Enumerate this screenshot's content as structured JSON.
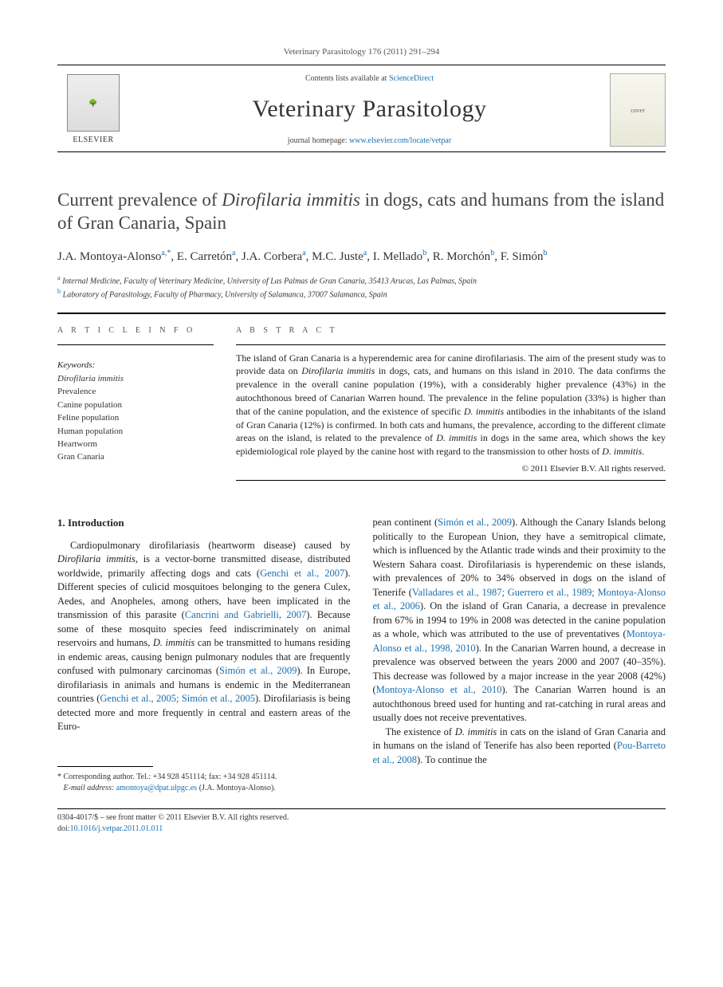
{
  "header": {
    "citation": "Veterinary Parasitology 176 (2011) 291–294",
    "contents_prefix": "Contents lists available at ",
    "contents_link": "ScienceDirect",
    "journal_title": "Veterinary Parasitology",
    "homepage_prefix": "journal homepage: ",
    "homepage_link": "www.elsevier.com/locate/vetpar",
    "publisher": "ELSEVIER"
  },
  "article": {
    "title_html": "Current prevalence of <span class=\"ital\">Dirofilaria immitis</span> in dogs, cats and humans from the island of Gran Canaria, Spain",
    "authors_html": "J.A. Montoya-Alonso<sup>a,*</sup>, E. Carretón<sup>a</sup>, J.A. Corbera<sup>a</sup>, M.C. Juste<sup>a</sup>, I. Mellado<sup>b</sup>, R. Morchón<sup>b</sup>, F. Simón<sup>b</sup>",
    "affiliations": [
      {
        "sup": "a",
        "text": "Internal Medicine, Faculty of Veterinary Medicine, University of Las Palmas de Gran Canaria, 35413 Arucas, Las Palmas, Spain"
      },
      {
        "sup": "b",
        "text": "Laboratory of Parasitology, Faculty of Pharmacy, University of Salamanca, 37007 Salamanca, Spain"
      }
    ]
  },
  "info": {
    "label": "A R T I C L E   I N F O",
    "keywords_head": "Keywords:",
    "keywords": [
      "Dirofilaria immitis",
      "Prevalence",
      "Canine population",
      "Feline population",
      "Human population",
      "Heartworm",
      "Gran Canaria"
    ]
  },
  "abstract": {
    "label": "A B S T R A C T",
    "text_html": "The island of Gran Canaria is a hyperendemic area for canine dirofilariasis. The aim of the present study was to provide data on <span class=\"ital\">Dirofilaria immitis</span> in dogs, cats, and humans on this island in 2010. The data confirms the prevalence in the overall canine population (19%), with a considerably higher prevalence (43%) in the autochthonous breed of Canarian Warren hound. The prevalence in the feline population (33%) is higher than that of the canine population, and the existence of specific <span class=\"ital\">D. immitis</span> antibodies in the inhabitants of the island of Gran Canaria (12%) is confirmed. In both cats and humans, the prevalence, according to the different climate areas on the island, is related to the prevalence of <span class=\"ital\">D. immitis</span> in dogs in the same area, which shows the key epidemiological role played by the canine host with regard to the transmission to other hosts of <span class=\"ital\">D. immitis</span>.",
    "copyright": "© 2011 Elsevier B.V. All rights reserved."
  },
  "body": {
    "section_head": "1.  Introduction",
    "left_html": "Cardiopulmonary dirofilariasis (heartworm disease) caused by <span class=\"ital\">Dirofilaria immitis</span>, is a vector-borne transmitted disease, distributed worldwide, primarily affecting dogs and cats (<a href=\"#\">Genchi et al., 2007</a>). Different species of culicid mosquitoes belonging to the genera Culex, Aedes, and Anopheles, among others, have been implicated in the transmission of this parasite (<a href=\"#\">Cancrini and Gabrielli, 2007</a>). Because some of these mosquito species feed indiscriminately on animal reservoirs and humans, <span class=\"ital\">D. immitis</span> can be transmitted to humans residing in endemic areas, causing benign pulmonary nodules that are frequently confused with pulmonary carcinomas (<a href=\"#\">Simón et al., 2009</a>). In Europe, dirofilariasis in animals and humans is endemic in the Mediterranean countries (<a href=\"#\">Genchi et al., 2005; Simón et al., 2005</a>). Dirofilariasis is being detected more and more frequently in central and eastern areas of the Euro-",
    "right_html": "pean continent (<a href=\"#\">Simón et al., 2009</a>). Although the Canary Islands belong politically to the European Union, they have a semitropical climate, which is influenced by the Atlantic trade winds and their proximity to the Western Sahara coast. Dirofilariasis is hyperendemic on these islands, with prevalences of 20% to 34% observed in dogs on the island of Tenerife (<a href=\"#\">Valladares et al., 1987; Guerrero et al., 1989; Montoya-Alonso et al., 2006</a>). On the island of Gran Canaria, a decrease in prevalence from 67% in 1994 to 19% in 2008 was detected in the canine population as a whole, which was attributed to the use of preventatives (<a href=\"#\">Montoya-Alonso et al., 1998, 2010</a>). In the Canarian Warren hound, a decrease in prevalence was observed between the years 2000 and 2007 (40–35%). This decrease was followed by a major increase in the year 2008 (42%) (<a href=\"#\">Montoya-Alonso et al., 2010</a>). The Canarian Warren hound is an autochthonous breed used for hunting and rat-catching in rural areas and usually does not receive preventatives.",
    "right_para2_html": "The existence of <span class=\"ital\">D. immitis</span> in cats on the island of Gran Canaria and in humans on the island of Tenerife has also been reported (<a href=\"#\">Pou-Barreto et al., 2008</a>). To continue the"
  },
  "footnote": {
    "corr_html": "* Corresponding author. Tel.: +34 928 451114; fax: +34 928 451114.",
    "email_label": "E-mail address:",
    "email": "amontoya@dpat.ulpgc.es",
    "email_suffix": "(J.A. Montoya-Alonso)."
  },
  "footer": {
    "left_line1": "0304-4017/$ – see front matter © 2011 Elsevier B.V. All rights reserved.",
    "doi_prefix": "doi:",
    "doi": "10.1016/j.vetpar.2011.01.011"
  }
}
